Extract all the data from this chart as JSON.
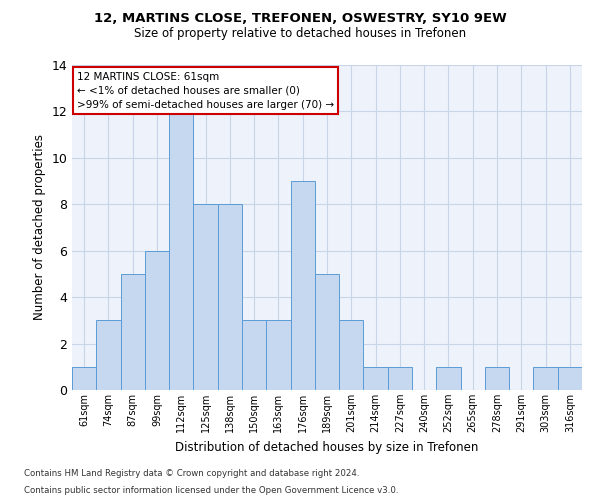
{
  "title1": "12, MARTINS CLOSE, TREFONEN, OSWESTRY, SY10 9EW",
  "title2": "Size of property relative to detached houses in Trefonen",
  "xlabel": "Distribution of detached houses by size in Trefonen",
  "ylabel": "Number of detached properties",
  "categories": [
    "61sqm",
    "74sqm",
    "87sqm",
    "99sqm",
    "112sqm",
    "125sqm",
    "138sqm",
    "150sqm",
    "163sqm",
    "176sqm",
    "189sqm",
    "201sqm",
    "214sqm",
    "227sqm",
    "240sqm",
    "252sqm",
    "265sqm",
    "278sqm",
    "291sqm",
    "303sqm",
    "316sqm"
  ],
  "values": [
    1,
    3,
    5,
    6,
    12,
    8,
    8,
    3,
    3,
    9,
    5,
    3,
    1,
    1,
    0,
    1,
    0,
    1,
    0,
    1,
    1
  ],
  "bar_color": "#c5d8f0",
  "bar_edge_color": "#5b9bd5",
  "annotation_lines": [
    "12 MARTINS CLOSE: 61sqm",
    "← <1% of detached houses are smaller (0)",
    ">99% of semi-detached houses are larger (70) →"
  ],
  "annotation_box_color": "#ffffff",
  "annotation_box_edge_color": "#cc0000",
  "ylim": [
    0,
    14
  ],
  "yticks": [
    0,
    2,
    4,
    6,
    8,
    10,
    12,
    14
  ],
  "grid_color": "#c8d4e8",
  "background_color": "#eef2fa",
  "footnote1": "Contains HM Land Registry data © Crown copyright and database right 2024.",
  "footnote2": "Contains public sector information licensed under the Open Government Licence v3.0."
}
